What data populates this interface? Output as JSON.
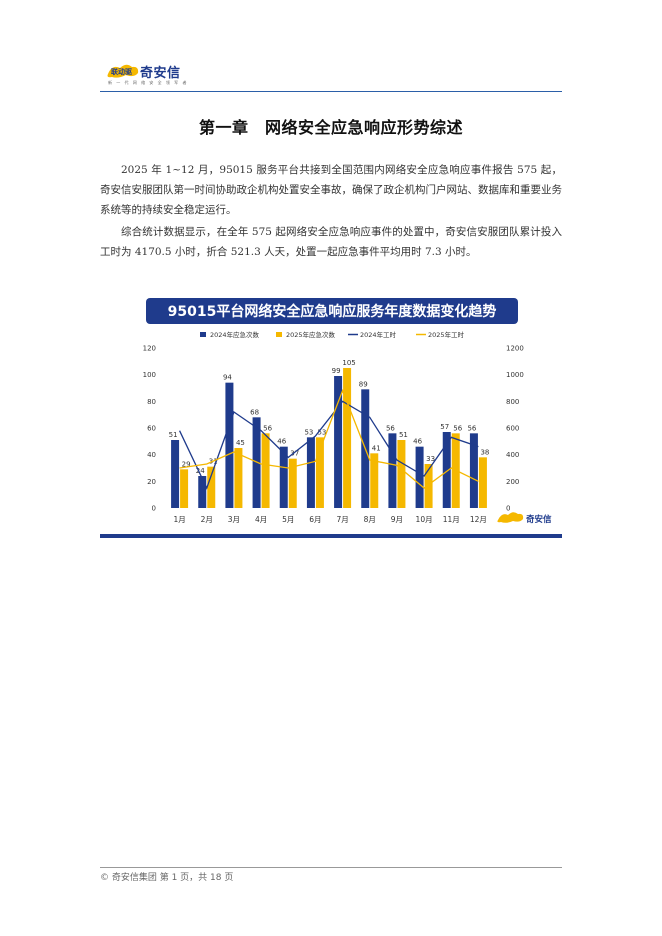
{
  "header": {
    "logo_mark": "联动驱",
    "brand": "奇安信",
    "tagline": "新 一 代 网 络 安 全 领 军 者"
  },
  "chapter_title": "第一章　网络安全应急响应形势综述",
  "paragraphs": [
    "2025 年 1~12 月，95015 服务平台共接到全国范围内网络安全应急响应事件报告 575 起，奇安信安服团队第一时间协助政企机构处置安全事故，确保了政企机构门户网站、数据库和重要业务系统等的持续安全稳定运行。",
    "综合统计数据显示，在全年 575 起网络安全应急响应事件的处置中，奇安信安服团队累计投入工时为 4170.5 小时，折合 521.3 人天，处置一起应急事件平均用时 7.3 小时。"
  ],
  "chart_data": {
    "type": "bar",
    "title": "95015平台网络安全应急响应服务年度数据变化趋势",
    "categories": [
      "1月",
      "2月",
      "3月",
      "4月",
      "5月",
      "6月",
      "7月",
      "8月",
      "9月",
      "10月",
      "11月",
      "12月"
    ],
    "series": [
      {
        "name": "2024年应急次数",
        "type": "bar",
        "axis": "left",
        "color": "#1f3b8c",
        "values": [
          51,
          24,
          94,
          68,
          46,
          53,
          99,
          89,
          56,
          46,
          57,
          56
        ]
      },
      {
        "name": "2025年应急次数",
        "type": "bar",
        "axis": "left",
        "color": "#f5b800",
        "values": [
          29,
          31,
          45,
          56,
          37,
          53,
          105,
          41,
          51,
          33,
          56,
          38
        ]
      },
      {
        "name": "2024年工时",
        "type": "line",
        "axis": "right",
        "color": "#1f3b8c",
        "values": [
          580,
          150,
          720,
          580,
          380,
          540,
          800,
          680,
          360,
          240,
          530,
          460
        ]
      },
      {
        "name": "2025年工时",
        "type": "line",
        "axis": "right",
        "color": "#f5b800",
        "values": [
          300,
          330,
          420,
          330,
          300,
          350,
          880,
          360,
          320,
          150,
          300,
          200
        ]
      }
    ],
    "y_left": {
      "min": 0,
      "max": 120,
      "ticks": [
        0,
        20,
        40,
        60,
        80,
        100,
        120
      ]
    },
    "y_right": {
      "min": 0,
      "max": 1200,
      "ticks": [
        0,
        200,
        400,
        600,
        800,
        1000,
        1200
      ]
    },
    "legend_position": "top",
    "grid": false,
    "watermark_brand": "奇安信"
  },
  "footer": {
    "copyright": "© 奇安信集团  第 1 页，共 18 页"
  }
}
